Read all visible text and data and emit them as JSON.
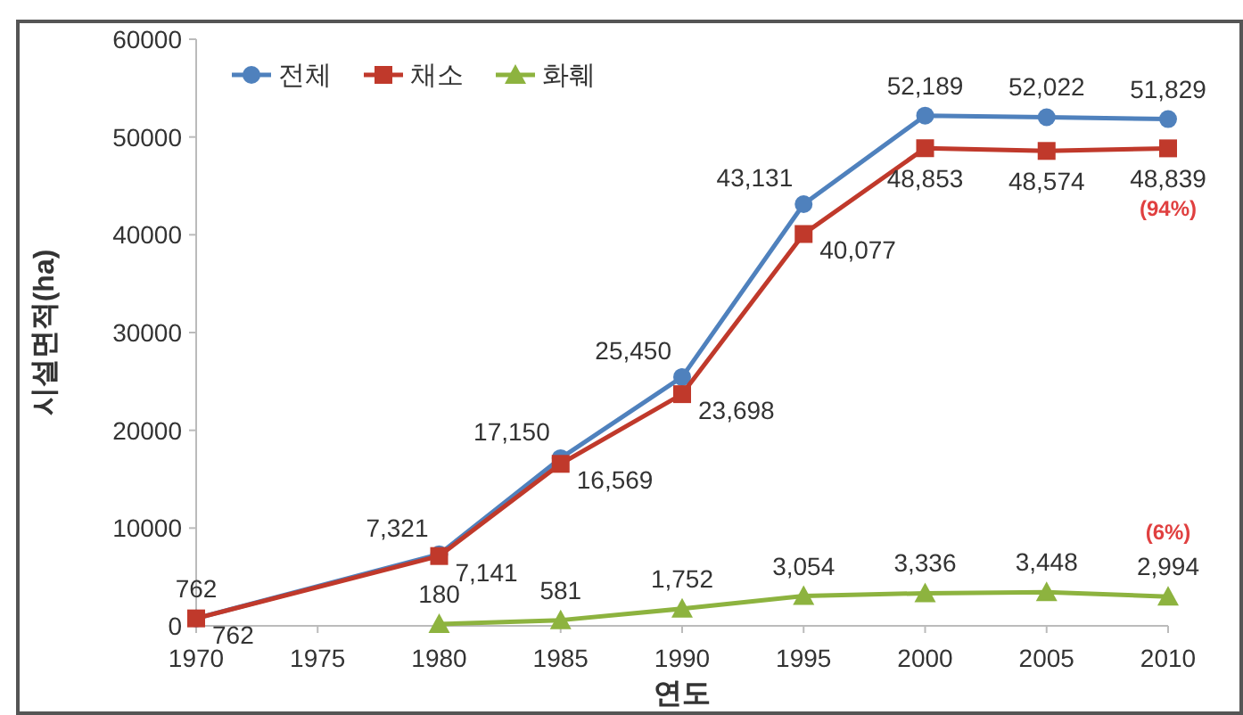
{
  "chart_data": {
    "type": "line",
    "xlabel": "연도",
    "ylabel": "시설면적(ha)",
    "x": [
      1970,
      1980,
      1985,
      1990,
      1995,
      2000,
      2005,
      2010
    ],
    "xlim": [
      1970,
      2010
    ],
    "xticks": [
      1970,
      1975,
      1980,
      1985,
      1990,
      1995,
      2000,
      2005,
      2010
    ],
    "ylim": [
      0,
      60000
    ],
    "yticks": [
      0,
      10000,
      20000,
      30000,
      40000,
      50000,
      60000
    ],
    "grid": false,
    "legend": "top left",
    "series": [
      {
        "name": "전체",
        "color": "#4f81bd",
        "marker": "circle",
        "values": [
          762,
          7321,
          17150,
          25450,
          43131,
          52189,
          52022,
          51829
        ],
        "value_labels": [
          "762",
          "7,321",
          "17,150",
          "25,450",
          "43,131",
          "52,189",
          "52,022",
          "51,829"
        ]
      },
      {
        "name": "채소",
        "color": "#c0392b",
        "marker": "square",
        "values": [
          762,
          7141,
          16569,
          23698,
          40077,
          48853,
          48574,
          48839
        ],
        "value_labels": [
          "762",
          "7,141",
          "16,569",
          "23,698",
          "40,077",
          "48,853",
          "48,574",
          "48,839"
        ]
      },
      {
        "name": "화훼",
        "color": "#8db33f",
        "marker": "triangle",
        "values": [
          null,
          180,
          581,
          1752,
          3054,
          3336,
          3448,
          2994
        ],
        "value_labels": [
          null,
          "180",
          "581",
          "1,752",
          "3,054",
          "3,336",
          "3,448",
          "2,994"
        ]
      }
    ],
    "annotations": [
      {
        "text": "(94%)",
        "x": 2010,
        "y": 48839
      },
      {
        "text": "(6%)",
        "x": 2010,
        "y": 2994
      }
    ]
  }
}
